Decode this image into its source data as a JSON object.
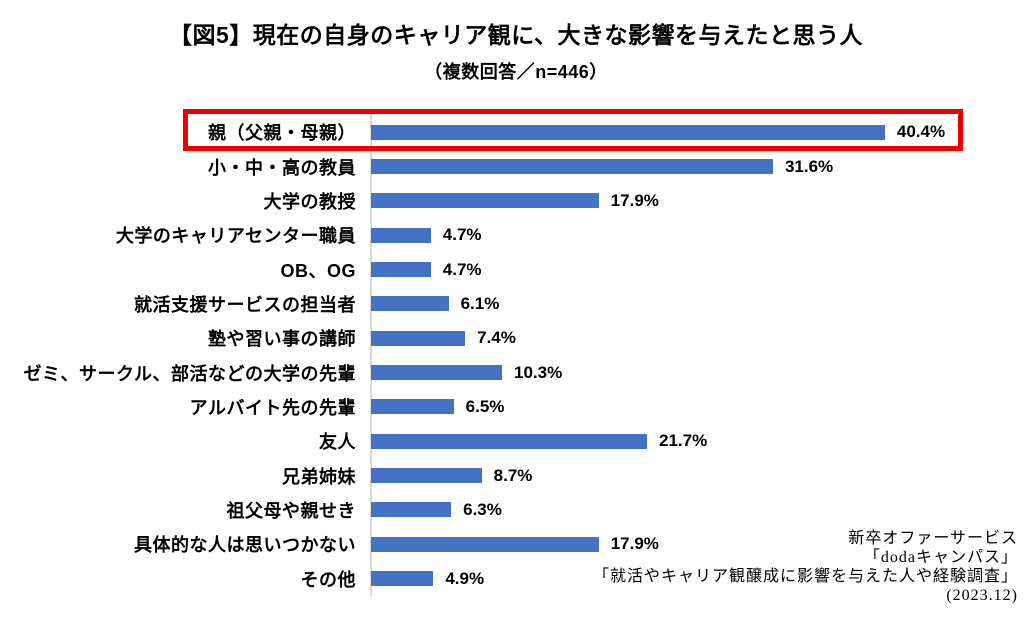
{
  "page": {
    "title": "【図5】現在の自身のキャリア観に、大きな影響を与えたと思う人",
    "subtitle": "（複数回答／n=446）"
  },
  "source": {
    "lines": [
      "新卒オファーサービス",
      "「dodaキャンパス」",
      "「就活やキャリア観醸成に影響を与えた人や経験調査」",
      "(2023.12)"
    ]
  },
  "colors": {
    "bar": "#4472C4",
    "axis_line": "#D9D9D9",
    "highlight_box": "#EE0000",
    "text": "#000000"
  },
  "chart_data": {
    "type": "bar",
    "orientation": "horizontal",
    "title": "【図5】現在の自身のキャリア観に、大きな影響を与えたと思う人",
    "subtitle": "（複数回答／n=446）",
    "n": 446,
    "value_suffix": "%",
    "xlim": [
      0,
      45
    ],
    "grid": false,
    "legend": false,
    "categories": [
      "親（父親・母親）",
      "小・中・高の教員",
      "大学の教授",
      "大学のキャリアセンター職員",
      "OB、OG",
      "就活支援サービスの担当者",
      "塾や習い事の講師",
      "ゼミ、サークル、部活などの大学の先輩",
      "アルバイト先の先輩",
      "友人",
      "兄弟姉妹",
      "祖父母や親せき",
      "具体的な人は思いつかない",
      "その他"
    ],
    "values": [
      40.4,
      31.6,
      17.9,
      4.7,
      4.7,
      6.1,
      7.4,
      10.3,
      6.5,
      21.7,
      8.7,
      6.3,
      17.9,
      4.9
    ],
    "highlighted_index": 0,
    "highlighted_category": "親（父親・母親）"
  }
}
